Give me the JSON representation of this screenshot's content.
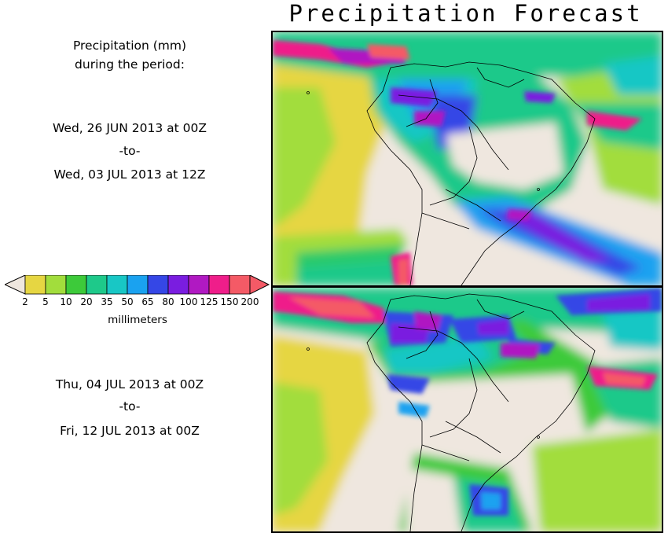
{
  "title": "Precipitation Forecast",
  "heading": [
    "Precipitation (mm)",
    "during the period:"
  ],
  "periods": [
    {
      "start": "Wed, 26 JUN 2013 at 00Z",
      "to": "-to-",
      "end": "Wed, 03 JUL 2013 at 12Z"
    },
    {
      "start": "Thu, 04 JUL 2013 at 00Z",
      "to": "-to-",
      "end": "Fri, 12 JUL 2013 at 00Z"
    }
  ],
  "colorbar": {
    "labels": [
      "2",
      "5",
      "10",
      "20",
      "35",
      "50",
      "65",
      "80",
      "100",
      "125",
      "150",
      "200"
    ],
    "units": "millimeters",
    "colors": [
      "#e6d642",
      "#a2dd3c",
      "#3dca3a",
      "#1ec98a",
      "#18c7c5",
      "#1aa2f0",
      "#3547e6",
      "#7a1de0",
      "#b019c2",
      "#ef1e8a",
      "#f45a66"
    ],
    "under_color": "#efe7df",
    "over_color": "#f45a66"
  },
  "map_colors": {
    "land_dry": "#efe7df",
    "country_border": "#000000"
  }
}
